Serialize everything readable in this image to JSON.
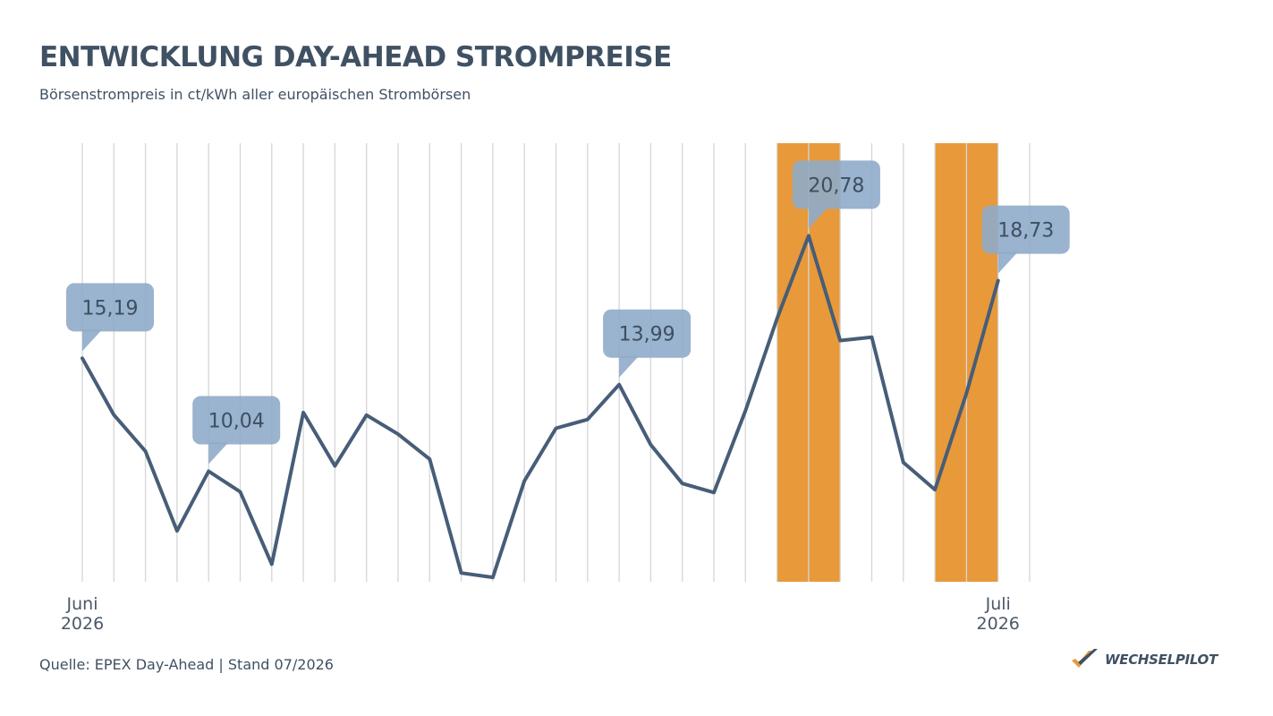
{
  "header": {
    "title": "ENTWICKLUNG DAY-AHEAD STROMPREISE",
    "subtitle": "Börsenstrompreis in ct/kWh aller europäischen Strombörsen"
  },
  "footer": {
    "source": "Quelle: EPEX Day-Ahead | Stand 07/2026",
    "brand": "WECHSELPILOT"
  },
  "colors": {
    "line": "#475d78",
    "highlight": "#e8993a",
    "callout": "#8fabc9",
    "grid": "#d6d6d6",
    "brand_check_orange": "#e8993a",
    "brand_check_dark": "#3f5163"
  },
  "chart_data": {
    "type": "line",
    "title": "ENTWICKLUNG DAY-AHEAD STROMPREISE",
    "subtitle": "Börsenstrompreis in ct/kWh aller europäischen Strombörsen",
    "ylabel": "",
    "xlabel": "",
    "unit": "ct/kWh",
    "ylim": [
      5,
      25
    ],
    "grid": "vertical",
    "x": [
      "2026-06-01",
      "2026-06-02",
      "2026-06-03",
      "2026-06-04",
      "2026-06-05",
      "2026-06-06",
      "2026-06-07",
      "2026-06-08",
      "2026-06-09",
      "2026-06-10",
      "2026-06-11",
      "2026-06-12",
      "2026-06-13",
      "2026-06-14",
      "2026-06-15",
      "2026-06-16",
      "2026-06-17",
      "2026-06-18",
      "2026-06-19",
      "2026-06-20",
      "2026-06-21",
      "2026-06-22",
      "2026-06-23",
      "2026-06-24",
      "2026-06-25",
      "2026-06-26",
      "2026-06-27",
      "2026-06-28",
      "2026-06-29",
      "2026-06-30",
      "2026-07-01"
    ],
    "series": [
      {
        "values": [
          15.19,
          12.61,
          10.95,
          7.32,
          10.04,
          9.1,
          5.8,
          12.72,
          10.28,
          12.6,
          11.73,
          10.59,
          5.4,
          5.2,
          9.6,
          12.0,
          12.4,
          13.99,
          11.25,
          9.48,
          9.07,
          12.8,
          17.0,
          20.78,
          16.0,
          16.15,
          10.44,
          9.2,
          13.6,
          18.73,
          18.73
        ],
        "display": [
          true,
          true,
          true,
          true,
          true,
          true,
          true,
          true,
          true,
          true,
          true,
          true,
          true,
          true,
          true,
          true,
          true,
          true,
          true,
          true,
          true,
          true,
          true,
          true,
          true,
          true,
          true,
          true,
          true,
          true,
          false
        ]
      }
    ],
    "x_ticks": [
      {
        "index": 0,
        "line1": "Juni",
        "line2": "2026"
      },
      {
        "index": 29,
        "line1": "Juli",
        "line2": "2026"
      }
    ],
    "highlight_ranges": [
      {
        "from": 22,
        "to": 24
      },
      {
        "from": 27,
        "to": 29
      }
    ],
    "annotations": [
      {
        "index": 0,
        "label": "15,19"
      },
      {
        "index": 4,
        "label": "10,04"
      },
      {
        "index": 17,
        "label": "13,99"
      },
      {
        "index": 23,
        "label": "20,78"
      },
      {
        "index": 29,
        "label": "18,73"
      }
    ]
  }
}
